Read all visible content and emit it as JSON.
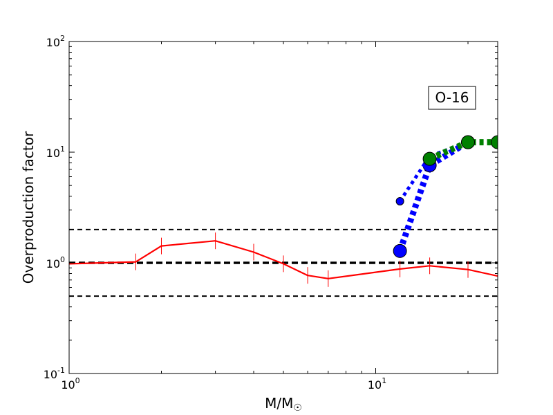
{
  "chart_data": {
    "type": "line",
    "xscale": "log",
    "yscale": "log",
    "xlim": [
      1,
      25
    ],
    "ylim": [
      0.1,
      100
    ],
    "xlabel": "M/M",
    "xlabel_sub": "☉",
    "ylabel": "Overproduction factor",
    "x_ticks": [
      {
        "base": "10",
        "exp": "0",
        "value": 1
      },
      {
        "base": "10",
        "exp": "1",
        "value": 10
      }
    ],
    "y_ticks": [
      {
        "base": "10",
        "exp": "-1",
        "value": 0.1
      },
      {
        "base": "10",
        "exp": "0",
        "value": 1
      },
      {
        "base": "10",
        "exp": "1",
        "value": 10
      },
      {
        "base": "10",
        "exp": "2",
        "value": 100
      }
    ],
    "annotation": "O-16",
    "grid": false,
    "reference_lines": [
      {
        "y": 2.0,
        "style": "dashed",
        "color": "#000000",
        "weight": "thin"
      },
      {
        "y": 1.0,
        "style": "dashed",
        "color": "#000000",
        "weight": "thick"
      },
      {
        "y": 0.5,
        "style": "dashed",
        "color": "#000000",
        "weight": "thin"
      }
    ],
    "series": [
      {
        "color": "#ff0000",
        "style": "solid",
        "marker": "vline",
        "x": [
          1.0,
          1.65,
          2.0,
          3.0,
          4.0,
          5.0,
          6.0,
          7.0,
          12.0,
          15.0,
          20.0,
          25.0
        ],
        "y": [
          0.98,
          1.02,
          1.42,
          1.58,
          1.25,
          0.98,
          0.77,
          0.72,
          0.88,
          0.94,
          0.87,
          0.76
        ]
      },
      {
        "color": "#0000ff",
        "style": "dotted-thick",
        "marker": "circle",
        "x": [
          12.0,
          15.0,
          20.0
        ],
        "y": [
          1.28,
          7.6,
          12.3
        ]
      },
      {
        "color": "#0000ff",
        "style": "dotted",
        "marker": "circle-small",
        "x": [
          12.0,
          15.0,
          20.0
        ],
        "y": [
          3.6,
          9.2,
          12.3
        ]
      },
      {
        "color": "#008000",
        "style": "dotted-thick",
        "marker": "circle",
        "x": [
          15.0,
          20.0,
          25.0
        ],
        "y": [
          8.7,
          12.3,
          12.3
        ]
      }
    ]
  }
}
